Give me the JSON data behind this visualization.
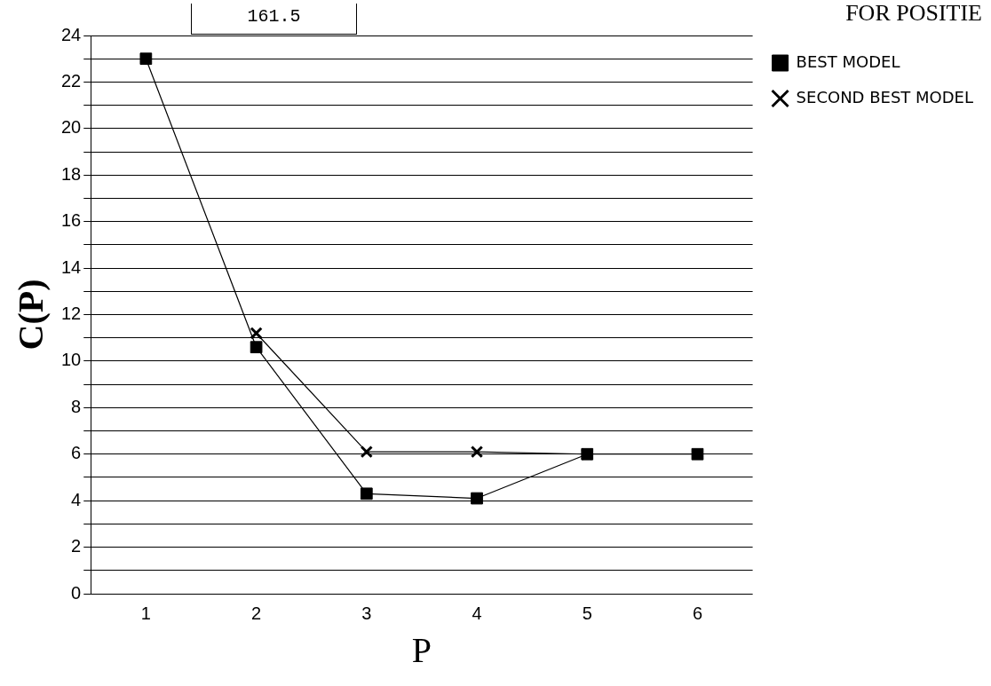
{
  "chart_data": {
    "type": "line",
    "title": "FOR POSITIE",
    "xlabel": "P",
    "ylabel": "C(P)",
    "categories": [
      "1",
      "2",
      "3",
      "4",
      "5",
      "6"
    ],
    "series": [
      {
        "name": "BEST MODEL",
        "color": "#000000",
        "marker": "square",
        "values": [
          23,
          10.6,
          4.3,
          4.1,
          6,
          6
        ]
      },
      {
        "name": "SECOND BEST MODEL",
        "color": "#000000",
        "marker": "cross",
        "values": [
          null,
          11.2,
          6.1,
          6.1,
          6,
          null
        ]
      }
    ],
    "ylim": [
      0,
      24
    ],
    "yticks": [
      0,
      {
        "value": 1,
        "label": null
      },
      2,
      {
        "value": 3,
        "label": null
      },
      4,
      {
        "value": 5,
        "label": null
      },
      6,
      {
        "value": 7,
        "label": null
      },
      8,
      {
        "value": 9,
        "label": null
      },
      10,
      {
        "value": 11,
        "label": null
      },
      12,
      {
        "value": 13,
        "label": null
      },
      14,
      {
        "value": 15,
        "label": null
      },
      16,
      {
        "value": 17,
        "label": null
      },
      18,
      {
        "value": 19,
        "label": null
      },
      20,
      {
        "value": 21,
        "label": null
      },
      22,
      {
        "value": 23,
        "label": null
      },
      24
    ],
    "grid": "y",
    "legend": "top right",
    "line_style": "solid",
    "annotations": [
      "161.5"
    ]
  }
}
